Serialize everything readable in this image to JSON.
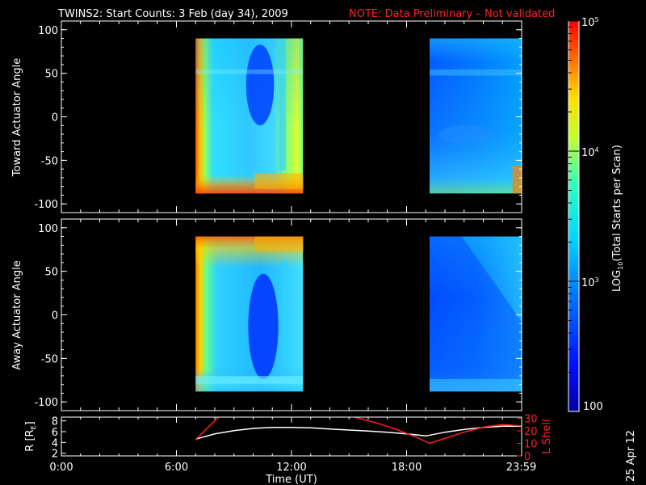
{
  "chart_data": [
    {
      "type": "heatmap",
      "title": "TWINS2: Start Counts:  3 Feb (day  34), 2009",
      "note": "NOTE: Data Preliminary – Not validated",
      "ylabel": "Toward Actuator Angle",
      "ylim": [
        -110,
        110
      ],
      "yticks": [
        100,
        50,
        0,
        -50,
        -100
      ],
      "xlim": [
        0,
        24
      ],
      "data_blocks": [
        {
          "t_start": 7.0,
          "t_end": 12.6,
          "angle_min": -88,
          "angle_max": 90
        },
        {
          "t_start": 19.2,
          "t_end": 24.0,
          "angle_min": -88,
          "angle_max": 90
        }
      ]
    },
    {
      "type": "heatmap",
      "ylabel": "Away Actuator Angle",
      "ylim": [
        -110,
        110
      ],
      "yticks": [
        100,
        50,
        0,
        -50,
        -100
      ],
      "xlim": [
        0,
        24
      ],
      "data_blocks": [
        {
          "t_start": 7.0,
          "t_end": 12.6,
          "angle_min": -88,
          "angle_max": 90
        },
        {
          "t_start": 19.2,
          "t_end": 24.0,
          "angle_min": -88,
          "angle_max": 90
        }
      ]
    },
    {
      "type": "line",
      "xlabel": "Time (UT)",
      "xticks": [
        "0:00",
        "6:00",
        "12:00",
        "18:00",
        "23:59"
      ],
      "xtick_hours": [
        0,
        6,
        12,
        18,
        23.98
      ],
      "ylabel_left": "R [R",
      "ylabel_left_sub": "E",
      "ylabel_left_close": "]",
      "ylabel_right": "L Shell",
      "yleft_ticks": [
        8,
        6,
        4,
        2
      ],
      "yleft_lim": [
        1.5,
        8.7
      ],
      "yright_ticks": [
        30,
        20,
        10,
        0
      ],
      "yright_lim": [
        0,
        31
      ],
      "series": [
        {
          "color": "#ffffff",
          "axis": "left",
          "x": [
            7.0,
            8.0,
            9.0,
            10.0,
            11.0,
            12.0,
            13.0,
            14.0,
            15.0,
            16.0,
            17.0,
            18.0,
            19.0,
            20.0,
            21.0,
            22.0,
            23.0,
            24.0
          ],
          "y": [
            4.6,
            5.6,
            6.2,
            6.6,
            6.8,
            6.8,
            6.7,
            6.5,
            6.3,
            6.1,
            5.9,
            5.6,
            5.2,
            5.9,
            6.4,
            6.8,
            7.0,
            7.0
          ]
        },
        {
          "color": "#ff2020",
          "axis": "right",
          "x": [
            7.0,
            7.6,
            8.2
          ],
          "y": [
            13,
            22,
            31
          ]
        },
        {
          "color": "#ff2020",
          "axis": "right",
          "x": [
            15.3,
            16.5,
            17.5,
            18.5,
            19.2,
            20.0,
            21.0,
            22.0,
            23.0,
            24.0
          ],
          "y": [
            31,
            26,
            21,
            15,
            10,
            14,
            19,
            23,
            25,
            24
          ]
        }
      ]
    }
  ],
  "colorbar": {
    "label": "LOG",
    "label_sub": "10",
    "label_rest": "(Total Starts per Scan)",
    "ticks": [
      {
        "base": "10",
        "exp": "5",
        "value": 100000
      },
      {
        "base": "10",
        "exp": "4",
        "value": 10000
      },
      {
        "base": "10",
        "exp": "3",
        "value": 1000
      }
    ],
    "bottom_label": "100",
    "range": [
      100,
      100000
    ]
  },
  "footer_date": "25 Apr 12"
}
